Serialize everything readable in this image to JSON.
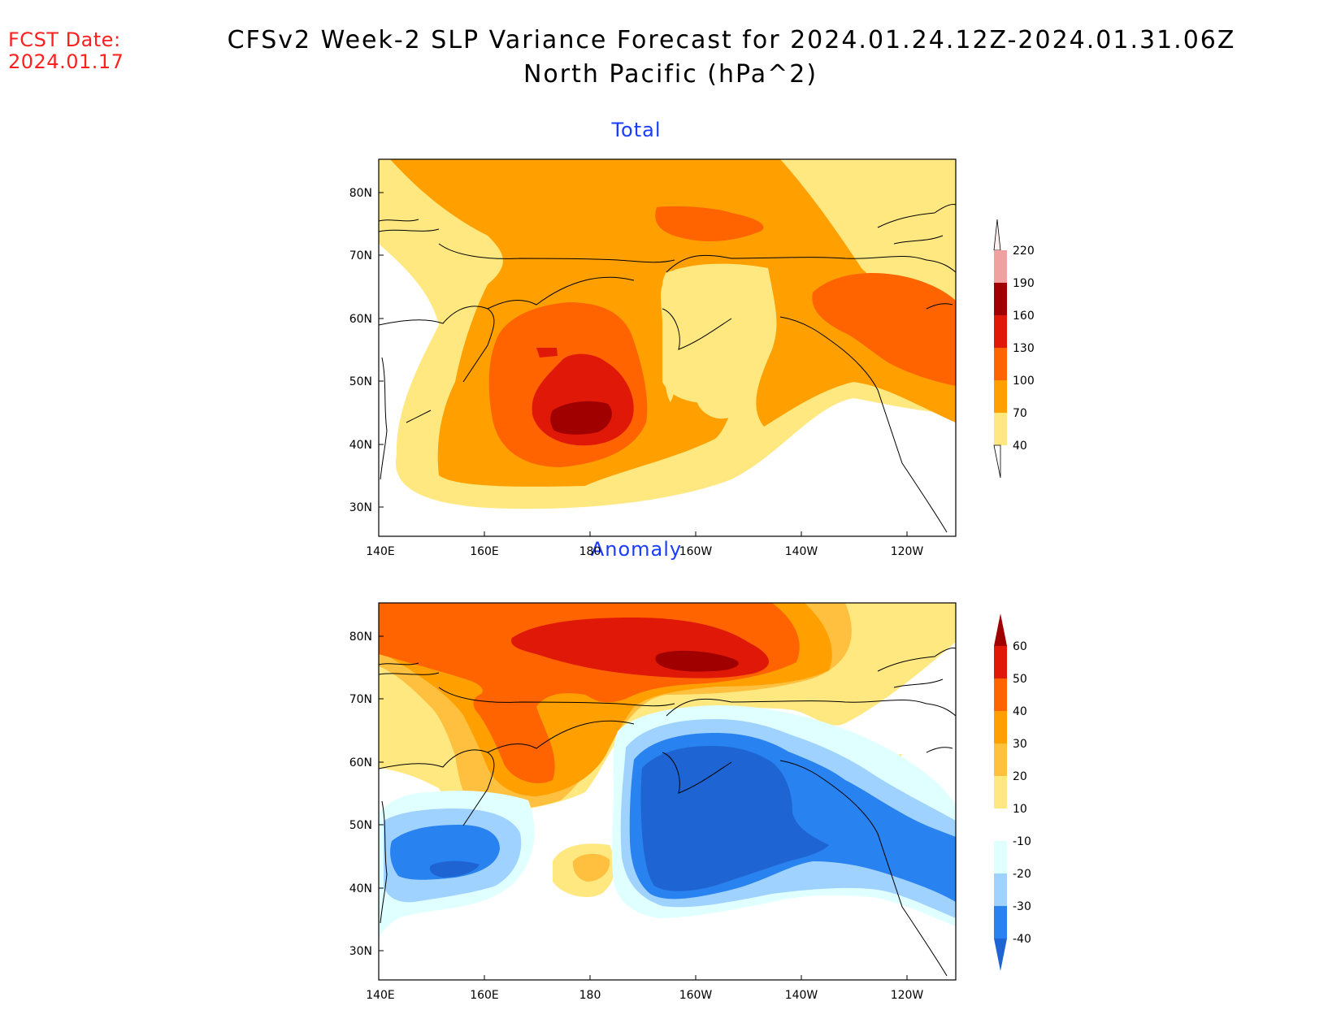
{
  "header": {
    "fcst_label": "FCST Date:",
    "fcst_date": "2024.01.17",
    "title_line1": "CFSv2 Week-2 SLP Variance Forecast for 2024.01.24.12Z-2024.01.31.06Z",
    "title_line2": "North Pacific (hPa^2)"
  },
  "map": {
    "region": "North Pacific",
    "lon_ticks": [
      "140E",
      "160E",
      "180",
      "160W",
      "140W",
      "120W"
    ],
    "lat_ticks": [
      "80N",
      "70N",
      "60N",
      "50N",
      "40N",
      "30N"
    ]
  },
  "panels": [
    {
      "title": "Total",
      "colorbar": {
        "levels": [
          "220",
          "190",
          "160",
          "130",
          "100",
          "70",
          "40"
        ],
        "colors": [
          "#fddede",
          "#f0a0a0",
          "#a00000",
          "#e01808",
          "#ff6400",
          "#ffa000",
          "#ffe880"
        ]
      }
    },
    {
      "title": "Anomaly",
      "colorbar": {
        "levels": [
          "60",
          "50",
          "40",
          "30",
          "20",
          "10",
          "-10",
          "-20",
          "-30",
          "-40"
        ],
        "colors": [
          "#a00000",
          "#e01808",
          "#ff6400",
          "#ffa000",
          "#ffc040",
          "#ffe880",
          "#ffffff",
          "#e0ffff",
          "#a0d2ff",
          "#2882f0",
          "#1e64d2"
        ]
      }
    }
  ]
}
